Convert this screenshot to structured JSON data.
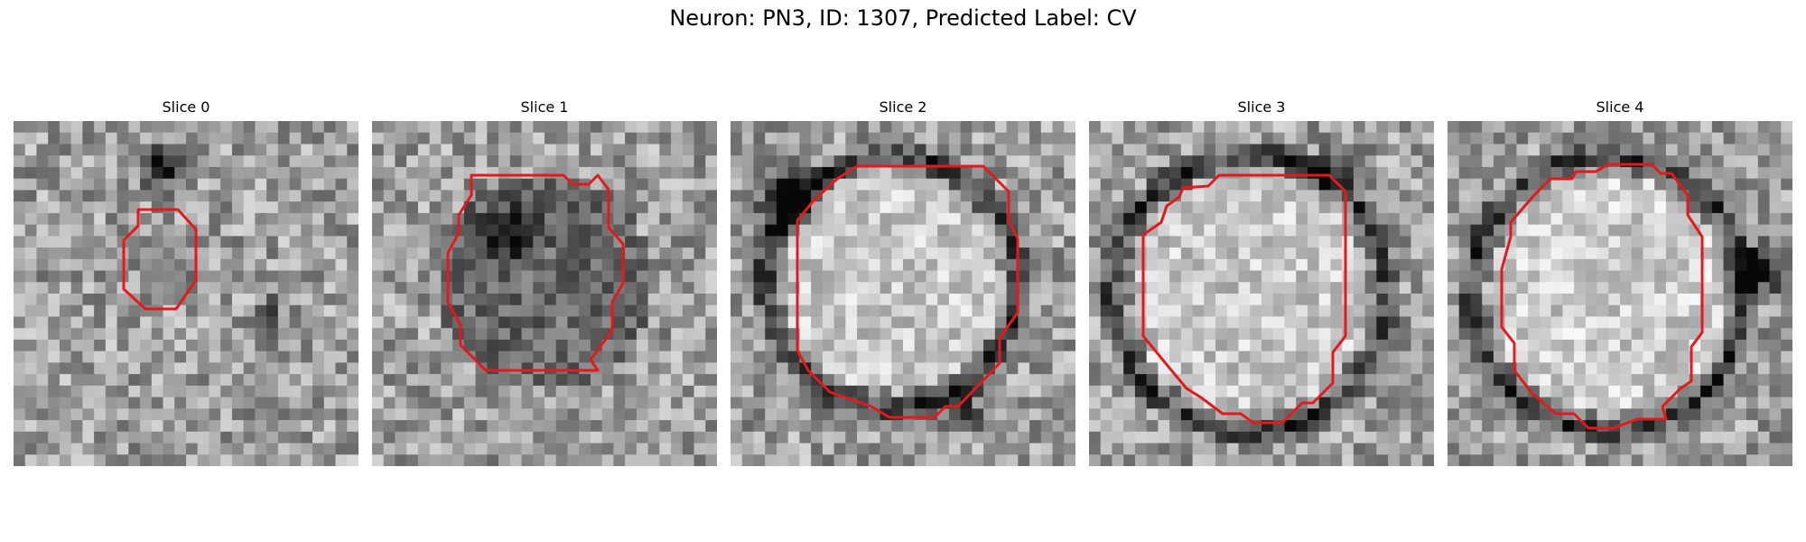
{
  "figure": {
    "suptitle": "Neuron: PN3, ID: 1307, Predicted Label: CV",
    "contour_color": "#e31a1c",
    "colormap": "gray",
    "grid_size": 30
  },
  "panels": [
    {
      "title": "Slice 0"
    },
    {
      "title": "Slice 1"
    },
    {
      "title": "Slice 2"
    },
    {
      "title": "Slice 3"
    },
    {
      "title": "Slice 4"
    }
  ]
}
